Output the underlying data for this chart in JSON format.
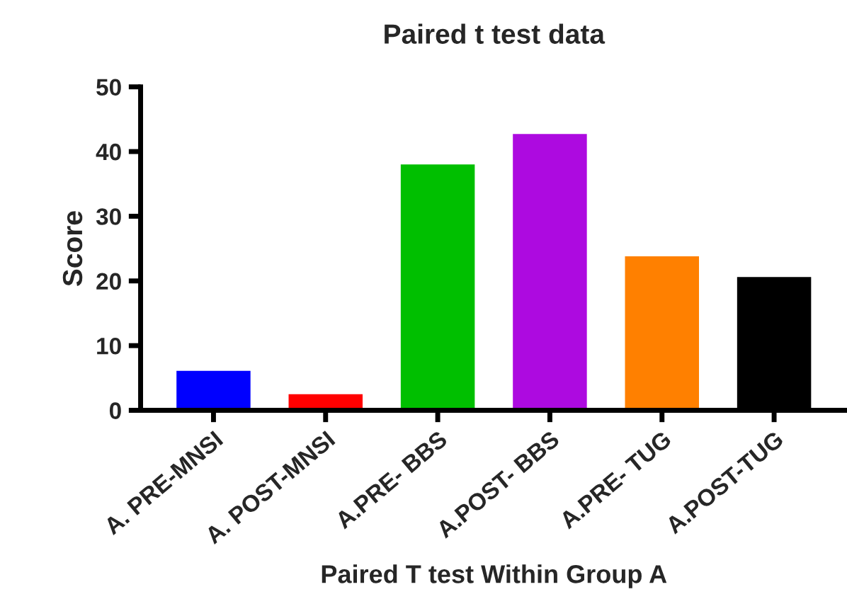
{
  "chart_data": {
    "type": "bar",
    "title": "Paired t test data",
    "xlabel": "Paired T test Within Group A",
    "ylabel": "Score",
    "categories": [
      "A. PRE-MNSI",
      "A. POST-MNSI",
      "A.PRE- BBS",
      "A.POST- BBS",
      "A.PRE- TUG",
      "A.POST-TUG"
    ],
    "values": [
      6.1,
      2.5,
      38.0,
      42.7,
      23.8,
      20.6
    ],
    "colors": [
      "#0000ff",
      "#ff0000",
      "#00bf00",
      "#ad0ae0",
      "#ff8000",
      "#000000"
    ],
    "ylim": [
      0,
      50
    ],
    "yticks": [
      0,
      10,
      20,
      30,
      40,
      50
    ],
    "grid": false,
    "legend": false
  }
}
